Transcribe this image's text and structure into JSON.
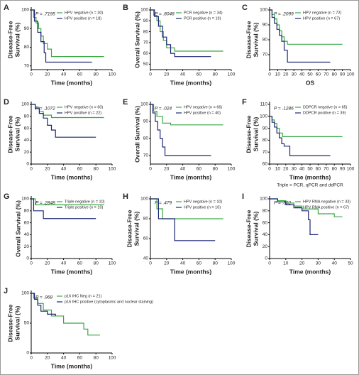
{
  "chart_data": [
    {
      "type": "step",
      "panel_label": "A",
      "ylabel": [
        "Disease-Free",
        "Survival (%)"
      ],
      "xlabel": "Time (months)",
      "annotation": "P = .7195",
      "xlim": [
        0,
        100
      ],
      "ylim": [
        68,
        100
      ],
      "xticks": [
        0,
        20,
        40,
        60,
        80,
        100
      ],
      "yticks": [
        70,
        80,
        90,
        100
      ],
      "series": [
        {
          "name": "HPV negative (n = 30)",
          "color": "#3aa845",
          "x": [
            0,
            3,
            6,
            9,
            12,
            15,
            20,
            25,
            90
          ],
          "values": [
            100,
            96,
            93,
            90,
            86,
            82,
            79,
            75,
            75
          ]
        },
        {
          "name": "HPV positive (n = 18)",
          "color": "#1c2473",
          "x": [
            0,
            4,
            8,
            12,
            16,
            18,
            75
          ],
          "values": [
            100,
            94,
            88,
            83,
            77,
            72,
            72
          ]
        }
      ]
    },
    {
      "type": "step",
      "panel_label": "B",
      "ylabel": [
        "Overall Survival (%)"
      ],
      "xlabel": "Time (months)",
      "annotation": "P = .8048",
      "xlim": [
        0,
        100
      ],
      "ylim": [
        45,
        100
      ],
      "xticks": [
        0,
        20,
        40,
        60,
        80,
        100
      ],
      "yticks": [
        50,
        60,
        70,
        80,
        90,
        100
      ],
      "series": [
        {
          "name": "PCR negative (n = 34)",
          "color": "#3aa845",
          "x": [
            0,
            4,
            8,
            12,
            16,
            20,
            30,
            90
          ],
          "values": [
            100,
            95,
            90,
            80,
            72,
            65,
            62,
            62
          ]
        },
        {
          "name": "PCR positive (n = 19)",
          "color": "#1c2473",
          "x": [
            0,
            5,
            10,
            15,
            20,
            25,
            30,
            75
          ],
          "values": [
            100,
            94,
            85,
            75,
            68,
            60,
            57,
            57
          ]
        }
      ]
    },
    {
      "type": "step",
      "panel_label": "C",
      "ylabel": [
        "Disease-Free",
        "Survival (%)"
      ],
      "xlabel": "OS",
      "annotation": "P = .2099",
      "xlim": [
        0,
        100
      ],
      "ylim": [
        60,
        100
      ],
      "xticks": [
        0,
        10,
        20,
        30,
        40,
        50,
        60,
        70,
        80,
        90,
        100
      ],
      "yticks": [
        70,
        80,
        90,
        100
      ],
      "series": [
        {
          "name": "HPV negative (n = 72)",
          "color": "#3aa845",
          "x": [
            0,
            3,
            6,
            9,
            12,
            15,
            18,
            22,
            90
          ],
          "values": [
            100,
            97,
            94,
            90,
            86,
            82,
            79,
            77,
            77
          ]
        },
        {
          "name": "HPV positive (n = 67)",
          "color": "#1c2473",
          "x": [
            0,
            3,
            6,
            9,
            12,
            15,
            18,
            22,
            75
          ],
          "values": [
            100,
            95,
            91,
            87,
            83,
            79,
            73,
            65,
            65
          ]
        }
      ]
    },
    {
      "type": "step",
      "panel_label": "D",
      "ylabel": [
        "Disease-Free",
        "Survival (%)"
      ],
      "xlabel": "Time (months)",
      "annotation": "P = .1072",
      "xlim": [
        0,
        100
      ],
      "ylim": [
        0,
        100
      ],
      "xticks": [
        0,
        20,
        40,
        60,
        80,
        100
      ],
      "yticks": [
        0,
        20,
        40,
        60,
        80,
        100
      ],
      "series": [
        {
          "name": "HPV negative (n = 60)",
          "color": "#3aa845",
          "x": [
            0,
            5,
            10,
            15,
            25,
            90
          ],
          "values": [
            100,
            95,
            88,
            82,
            78,
            78
          ]
        },
        {
          "name": "HPV positive (n = 22)",
          "color": "#1c2473",
          "x": [
            0,
            5,
            10,
            15,
            20,
            25,
            30,
            80
          ],
          "values": [
            100,
            93,
            85,
            77,
            65,
            57,
            45,
            45
          ]
        }
      ]
    },
    {
      "type": "step",
      "panel_label": "E",
      "ylabel": [
        "Overall Survival (%)"
      ],
      "xlabel": "Time (months)",
      "annotation": "P = .024",
      "xlim": [
        0,
        100
      ],
      "ylim": [
        65,
        100
      ],
      "xticks": [
        0,
        20,
        40,
        60,
        80,
        100
      ],
      "yticks": [
        70,
        80,
        90,
        100
      ],
      "series": [
        {
          "name": "HPV negative (n = 66)",
          "color": "#3aa845",
          "x": [
            0,
            4,
            8,
            15,
            25,
            90
          ],
          "values": [
            100,
            96,
            93,
            89,
            88,
            88
          ]
        },
        {
          "name": "HPV positive (n = 40)",
          "color": "#1c2473",
          "x": [
            0,
            3,
            6,
            9,
            12,
            15,
            18,
            75
          ],
          "values": [
            100,
            95,
            90,
            85,
            80,
            75,
            70,
            70
          ]
        }
      ]
    },
    {
      "type": "step",
      "panel_label": "F",
      "ylabel": [
        "Disease-Free",
        "Survival (%)"
      ],
      "xlabel": "Time (months)",
      "annotation": "P = .1286",
      "note": "Triple = PCR, qPCR and ddPCR",
      "xlim": [
        0,
        100
      ],
      "ylim": [
        60,
        110
      ],
      "xticks": [
        0,
        10,
        20,
        30,
        40,
        50,
        60,
        70,
        80,
        90,
        100
      ],
      "yticks": [
        60,
        70,
        80,
        90,
        100,
        110
      ],
      "series": [
        {
          "name": "DDPCR negative (n = 65)",
          "color": "#3aa845",
          "x": [
            0,
            3,
            6,
            9,
            12,
            16,
            90
          ],
          "values": [
            100,
            97,
            94,
            90,
            86,
            83,
            83
          ]
        },
        {
          "name": "DDPCR positive (n = 39)",
          "color": "#1c2473",
          "x": [
            0,
            3,
            6,
            9,
            12,
            15,
            18,
            25,
            75
          ],
          "values": [
            100,
            95,
            91,
            86,
            82,
            77,
            75,
            67,
            67
          ]
        }
      ]
    },
    {
      "type": "step",
      "panel_label": "G",
      "ylabel": [
        "Overall Survival (%)"
      ],
      "xlabel": "Time (months)",
      "annotation": "P = .2848",
      "xlim": [
        0,
        100
      ],
      "ylim": [
        0,
        100
      ],
      "xticks": [
        0,
        20,
        40,
        60,
        80,
        100
      ],
      "yticks": [
        0,
        20,
        40,
        60,
        80,
        100
      ],
      "series": [
        {
          "name": "Triple negative (n = 10)",
          "color": "#3aa845",
          "x": [
            0,
            5,
            90
          ],
          "values": [
            100,
            90,
            90
          ]
        },
        {
          "name": "Triple positive (n = 10)",
          "color": "#1c2473",
          "x": [
            0,
            3,
            15,
            80
          ],
          "values": [
            100,
            80,
            67,
            67
          ]
        }
      ]
    },
    {
      "type": "step",
      "panel_label": "H",
      "ylabel": [
        "Disease-Free",
        "Survival (%)"
      ],
      "xlabel": "Time (months)",
      "annotation": "P = .479",
      "xlim": [
        0,
        100
      ],
      "ylim": [
        40,
        100
      ],
      "xticks": [
        0,
        20,
        40,
        60,
        80,
        100
      ],
      "yticks": [
        40,
        60,
        80,
        100
      ],
      "series": [
        {
          "name": "HPV negative (n = 10)",
          "color": "#3aa845",
          "x": [
            0,
            8,
            15,
            90
          ],
          "values": [
            100,
            90,
            80,
            80
          ]
        },
        {
          "name": "HPV positive (n = 10)",
          "color": "#1c2473",
          "x": [
            0,
            10,
            30,
            80
          ],
          "values": [
            100,
            80,
            58,
            58
          ]
        }
      ]
    },
    {
      "type": "step",
      "panel_label": "I",
      "ylabel": [
        "Disease-Free",
        "Survival (%)"
      ],
      "xlabel": "Time (months)",
      "annotation": "P = .392",
      "xlim": [
        0,
        50
      ],
      "ylim": [
        0,
        100
      ],
      "xticks": [
        0,
        10,
        20,
        30,
        40,
        50
      ],
      "yticks": [
        0,
        20,
        40,
        60,
        80,
        100
      ],
      "series": [
        {
          "name": "HPV RNA negative (n = 33)",
          "color": "#3aa845",
          "x": [
            0,
            5,
            10,
            15,
            20,
            30,
            40,
            45
          ],
          "values": [
            100,
            97,
            93,
            88,
            83,
            75,
            70,
            70
          ]
        },
        {
          "name": "HPV RNA positive (n = 67)",
          "color": "#1c2473",
          "x": [
            0,
            5,
            10,
            15,
            20,
            24,
            25,
            30
          ],
          "values": [
            100,
            95,
            90,
            85,
            80,
            65,
            40,
            40
          ]
        }
      ]
    },
    {
      "type": "step",
      "panel_label": "J",
      "ylabel": [
        "Disease-Free",
        "Survival (%)"
      ],
      "xlabel": "Time (months)",
      "annotation": "P = .968",
      "xlim": [
        0,
        100
      ],
      "ylim": [
        0,
        100
      ],
      "xticks": [
        0,
        20,
        40,
        60,
        80,
        100
      ],
      "yticks": [
        0,
        50,
        100
      ],
      "series": [
        {
          "name": "p16 IHC Neg (n = 21)",
          "color": "#3aa845",
          "x": [
            0,
            3,
            8,
            15,
            25,
            40,
            65,
            70,
            85
          ],
          "values": [
            100,
            92,
            83,
            72,
            62,
            50,
            40,
            30,
            30
          ]
        },
        {
          "name": "p16 IHC positive (cytoplasmic and nuclear staining)",
          "color": "#1c2473",
          "x": [
            0,
            4,
            8,
            12,
            20,
            30
          ],
          "values": [
            100,
            90,
            80,
            70,
            65,
            62
          ]
        }
      ]
    }
  ]
}
